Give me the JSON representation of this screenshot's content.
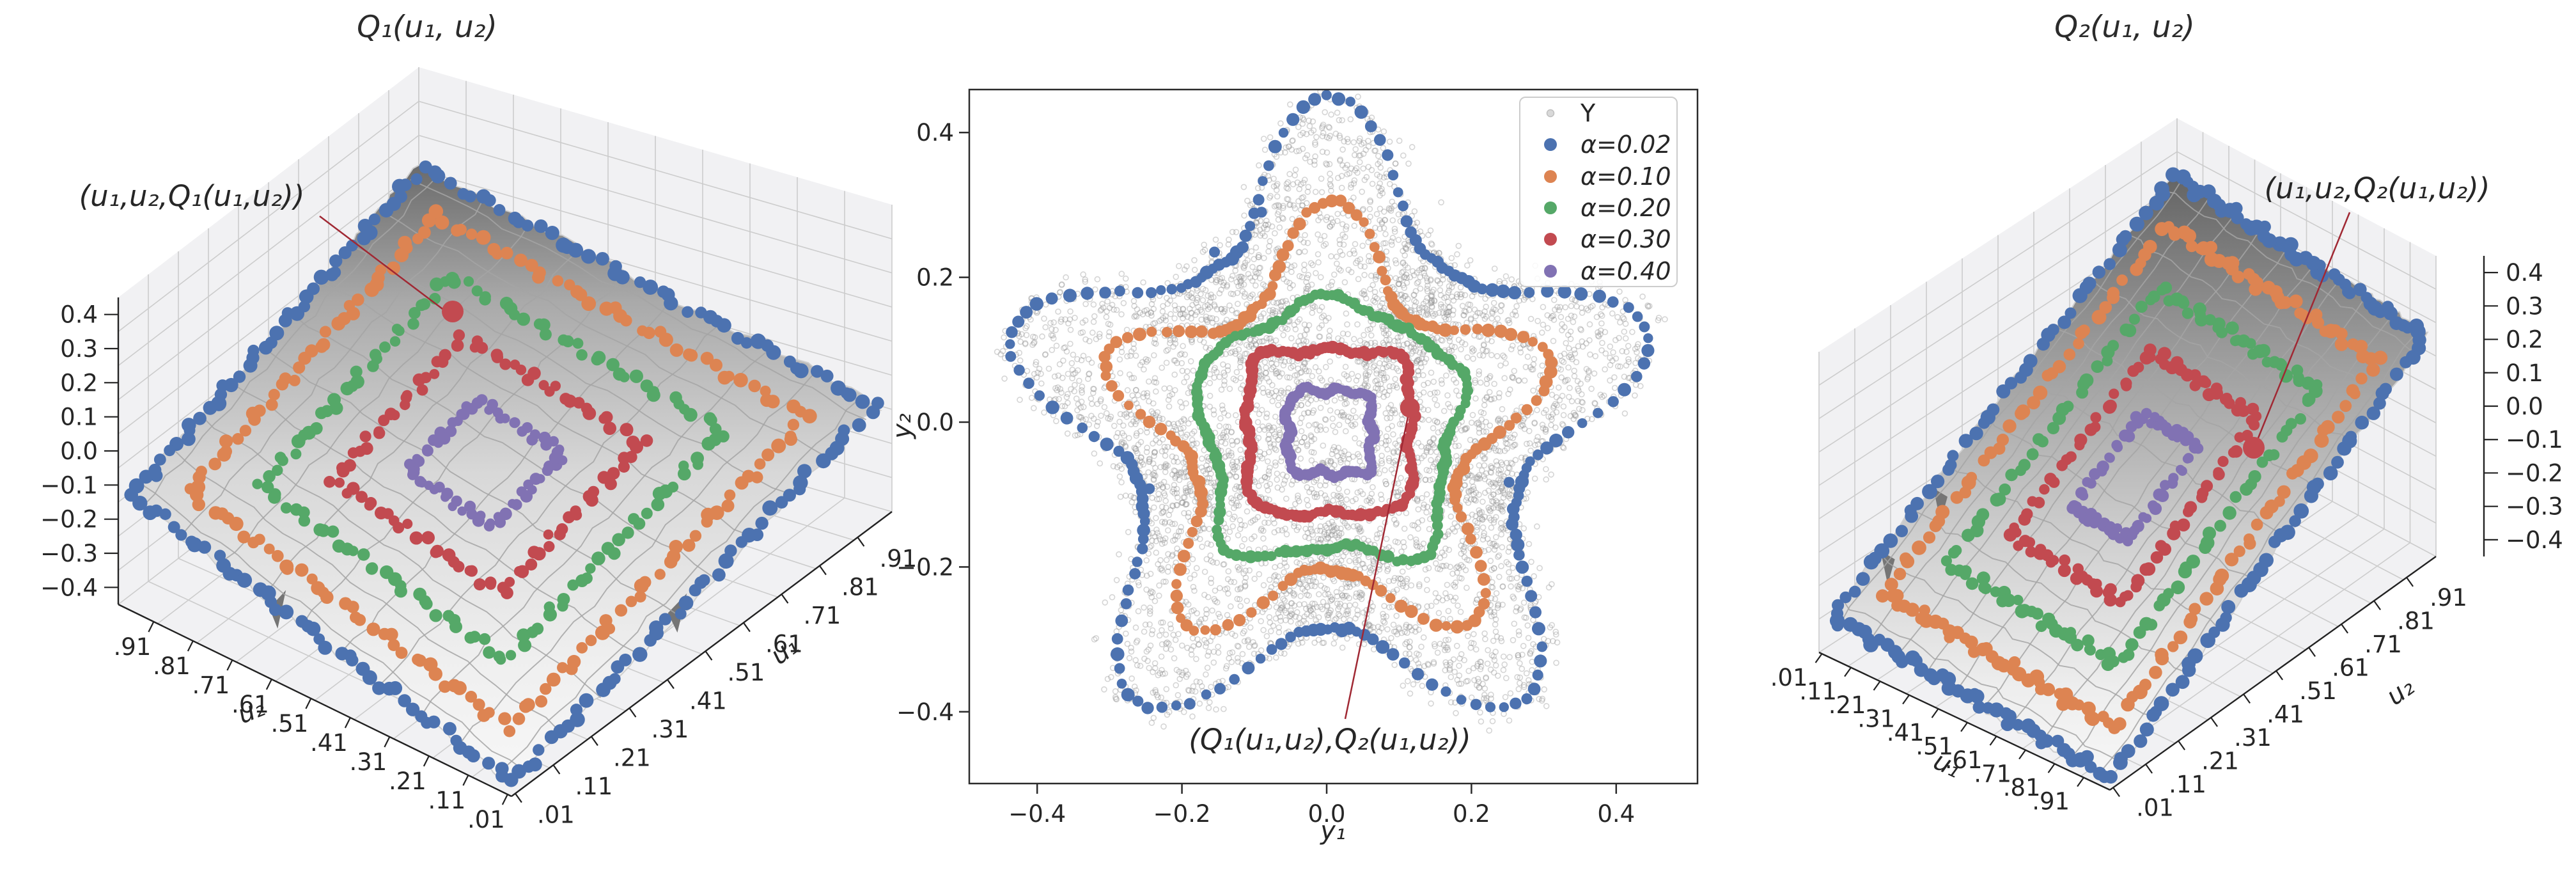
{
  "colors": {
    "blue": "#4C72B0",
    "orange": "#DD8452",
    "green": "#55A868",
    "red": "#C24A50",
    "purple": "#8172B3",
    "annotation": "#A02833",
    "scatter": "#909090",
    "pane": "#f1f1f3",
    "pane_grid": "#cccccc",
    "surface_mesh": "#a5a5a5",
    "axis": "#222222",
    "legend_edge": "#cccccc"
  },
  "panels": {
    "left3d": {
      "title": "Q₁(u₁, u₂)",
      "annotation": "(u₁,u₂,Q₁(u₁,u₂))",
      "u1_label": "u₁",
      "u2_label": "u₂",
      "z_ticks": [
        "0.4",
        "0.3",
        "0.2",
        "0.1",
        "0.0",
        "−0.1",
        "−0.2",
        "−0.3",
        "−0.4"
      ],
      "u2_ticks": [
        ".91",
        ".81",
        ".71",
        ".61",
        ".51",
        ".41",
        ".31",
        ".21",
        ".11",
        ".01"
      ],
      "u1_ticks": [
        ".01",
        ".11",
        ".21",
        ".31",
        ".41",
        ".51",
        ".61",
        ".71",
        ".81",
        ".91"
      ]
    },
    "center": {
      "x_label": "y₁",
      "y_label": "y₂",
      "x_ticks": [
        "−0.4",
        "−0.2",
        "0.0",
        "0.2",
        "0.4"
      ],
      "y_ticks": [
        "0.4",
        "0.2",
        "0.0",
        "−0.2",
        "−0.4"
      ],
      "annotation": "(Q₁(u₁,u₂),Q₂(u₁,u₂))",
      "legend": {
        "items": [
          {
            "label": "Y",
            "color": "#d9d9d9"
          },
          {
            "label": "α=0.02",
            "color": "#4C72B0"
          },
          {
            "label": "α=0.10",
            "color": "#DD8452"
          },
          {
            "label": "α=0.20",
            "color": "#55A868"
          },
          {
            "label": "α=0.30",
            "color": "#C24A50"
          },
          {
            "label": "α=0.40",
            "color": "#8172B3"
          }
        ]
      }
    },
    "right3d": {
      "title": "Q₂(u₁, u₂)",
      "annotation": "(u₁,u₂,Q₂(u₁,u₂))",
      "u1_label": "u₁",
      "u2_label": "u₂",
      "z_ticks": [
        "0.4",
        "0.3",
        "0.2",
        "0.1",
        "0.0",
        "−0.1",
        "−0.2",
        "−0.3",
        "−0.4"
      ],
      "u1_ticks": [
        ".01",
        ".11",
        ".21",
        ".31",
        ".41",
        ".51",
        ".61",
        ".71",
        ".81",
        ".91"
      ],
      "u2_ticks": [
        ".01",
        ".11",
        ".21",
        ".31",
        ".41",
        ".51",
        ".61",
        ".71",
        ".81",
        ".91"
      ]
    }
  },
  "chart_data": [
    {
      "id": "left-quantile-surface",
      "type": "surface",
      "title": "Q₁(u₁, u₂)",
      "x_label": "u₁",
      "y_label": "u₂",
      "u_tick_vals": [
        0.01,
        0.11,
        0.21,
        0.31,
        0.41,
        0.51,
        0.61,
        0.71,
        0.81,
        0.91
      ],
      "z_tick_vals": [
        0.4,
        0.3,
        0.2,
        0.1,
        0.0,
        -0.1,
        -0.2,
        -0.3,
        -0.4
      ],
      "z_range": [
        -0.45,
        0.45
      ],
      "surface": "gray-shaded quantile surface Q1 over unit square, high at (u1=1,u2=1)",
      "contours": [
        {
          "alpha": 0.02,
          "square": [
            0.02,
            0.98
          ],
          "color": "#4C72B0"
        },
        {
          "alpha": 0.1,
          "square": [
            0.1,
            0.9
          ],
          "color": "#DD8452"
        },
        {
          "alpha": 0.2,
          "square": [
            0.2,
            0.8
          ],
          "color": "#55A868"
        },
        {
          "alpha": 0.3,
          "square": [
            0.3,
            0.7
          ],
          "color": "#C24A50"
        },
        {
          "alpha": 0.4,
          "square": [
            0.4,
            0.6
          ],
          "color": "#8172B3"
        }
      ],
      "annotation": {
        "text": "(u₁,u₂,Q₁(u₁,u₂))",
        "marked_contour_alpha": 0.3
      }
    },
    {
      "id": "star-scatter",
      "type": "scatter",
      "x_label": "y₁",
      "y_label": "y₂",
      "x_tick_vals": [
        -0.4,
        -0.2,
        0.0,
        0.2,
        0.4
      ],
      "y_tick_vals": [
        0.4,
        0.2,
        0.0,
        -0.2,
        -0.4
      ],
      "xlim": [
        -0.503,
        0.507
      ],
      "ylim": [
        -0.459,
        0.459
      ],
      "legend_position": "upper right",
      "cloud": {
        "name": "Y",
        "n": 5200,
        "shape": "5-point star",
        "tip_radius": 0.48,
        "valley_radius": 0.285,
        "sharpness": 1.7,
        "jitter": 0.014,
        "seed": 11
      },
      "center_offset": [
        0.004,
        -0.014
      ],
      "rings": [
        {
          "label": "α=0.02",
          "alpha": 0.02,
          "color": "#4C72B0",
          "tip": 0.46,
          "valley": 0.275,
          "mix": 1.0,
          "h": 0.275,
          "dots": 175,
          "dot_r": 9.0
        },
        {
          "label": "α=0.10",
          "alpha": 0.1,
          "color": "#DD8452",
          "tip": 0.345,
          "valley": 0.19,
          "mix": 0.85,
          "h": 0.19,
          "dots": 165,
          "dot_r": 8.8
        },
        {
          "label": "α=0.20",
          "alpha": 0.2,
          "color": "#55A868",
          "tip": 0.235,
          "valley": 0.158,
          "mix": 0.45,
          "h": 0.158,
          "dots": 150,
          "dot_r": 8.6
        },
        {
          "label": "α=0.30",
          "alpha": 0.3,
          "color": "#C24A50",
          "tip": 0.12,
          "valley": 0.112,
          "mix": 0.07,
          "h": 0.112,
          "dots": 135,
          "dot_r": 8.6
        },
        {
          "label": "α=0.40",
          "alpha": 0.4,
          "color": "#8172B3",
          "tip": 0.06,
          "valley": 0.057,
          "mix": 0.0,
          "h": 0.057,
          "dots": 90,
          "dot_r": 8.2
        }
      ],
      "stray_blue_points": [
        [
          -0.155,
          0.235
        ],
        [
          -0.245,
          -0.092
        ],
        [
          0.252,
          -0.083
        ],
        [
          -0.09,
          0.29
        ]
      ],
      "highlight": {
        "point": [
          0.115,
          0.02
        ],
        "on_ring_alpha": 0.3,
        "text": "(Q₁(u₁,u₂),Q₂(u₁,u₂))"
      }
    },
    {
      "id": "right-quantile-surface",
      "type": "surface",
      "title": "Q₂(u₁, u₂)",
      "x_label": "u₁",
      "y_label": "u₂",
      "u_tick_vals": [
        0.01,
        0.11,
        0.21,
        0.31,
        0.41,
        0.51,
        0.61,
        0.71,
        0.81,
        0.91
      ],
      "z_tick_vals": [
        0.4,
        0.3,
        0.2,
        0.1,
        0.0,
        -0.1,
        -0.2,
        -0.3,
        -0.4
      ],
      "z_range": [
        -0.45,
        0.45
      ],
      "surface": "gray-shaded quantile surface Q2 over unit square, high at (u1=0,u2=1)",
      "contours": [
        {
          "alpha": 0.02,
          "square": [
            0.02,
            0.98
          ],
          "color": "#4C72B0"
        },
        {
          "alpha": 0.1,
          "square": [
            0.1,
            0.9
          ],
          "color": "#DD8452"
        },
        {
          "alpha": 0.2,
          "square": [
            0.2,
            0.8
          ],
          "color": "#55A868"
        },
        {
          "alpha": 0.3,
          "square": [
            0.3,
            0.7
          ],
          "color": "#C24A50"
        },
        {
          "alpha": 0.4,
          "square": [
            0.4,
            0.6
          ],
          "color": "#8172B3"
        }
      ],
      "annotation": {
        "text": "(u₁,u₂,Q₂(u₁,u₂))",
        "marked_contour_alpha": 0.3
      }
    }
  ]
}
